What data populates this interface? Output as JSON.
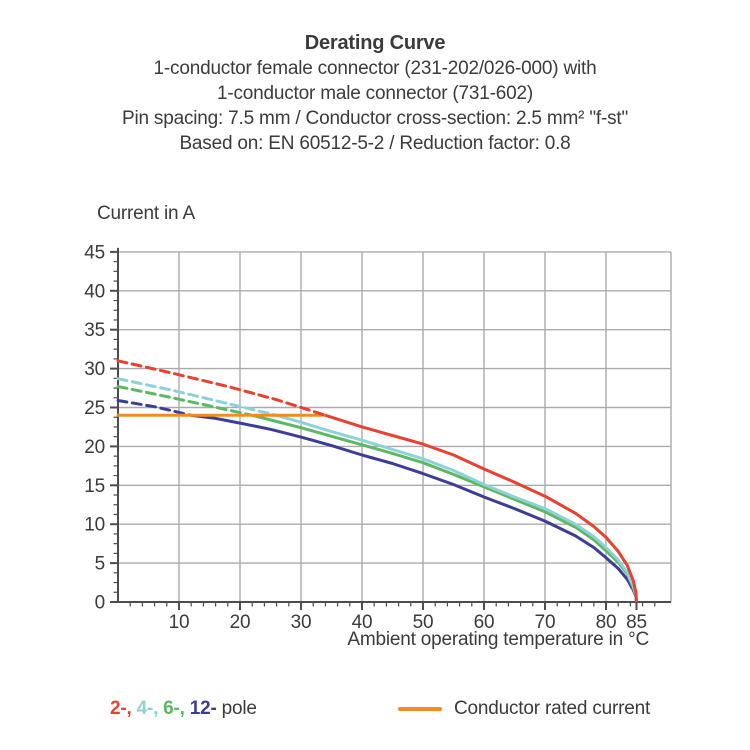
{
  "title": {
    "heading": "Derating Curve",
    "subtitle_lines": [
      "1-conductor female connector (231-202/026-000) with",
      "1-conductor male connector (731-602)",
      "Pin spacing: 7.5 mm / Conductor cross-section: 2.5 mm² \"f-st\"",
      "Based on: EN 60512-5-2 / Reduction factor: 0.8"
    ]
  },
  "chart_data": {
    "type": "line",
    "title": "Derating Curve",
    "xlabel": "Ambient operating temperature in °C",
    "ylabel": "Current in A",
    "xlim": [
      0,
      90.7
    ],
    "ylim": [
      0,
      45
    ],
    "x_major_ticks": [
      10,
      20,
      30,
      40,
      50,
      60,
      70,
      80,
      85
    ],
    "x_gridline_ticks": [
      10,
      20,
      30,
      40,
      50,
      60,
      70,
      80
    ],
    "x_minor_tick_step": 2,
    "y_major_ticks": [
      0,
      5,
      10,
      15,
      20,
      25,
      30,
      35,
      40,
      45
    ],
    "y_minor_tick_step": 1.25,
    "grid": true,
    "legend_position": "bottom",
    "axis_color": "#4d4d4d",
    "grid_color": "#ababab",
    "text_color": "#3b3b3b",
    "rated_current": {
      "label": "Conductor rated current",
      "value": 24,
      "x_start": 0,
      "x_end": 34,
      "color": "#ef8d22"
    },
    "series": [
      {
        "name": "12-pole",
        "color": "#3e3d96",
        "dashed_points": [
          [
            0,
            25.9
          ],
          [
            6,
            25.1
          ],
          [
            12,
            24
          ]
        ],
        "solid_points": [
          [
            12,
            24
          ],
          [
            16,
            23.6
          ],
          [
            20,
            23.0
          ],
          [
            25,
            22.2
          ],
          [
            30,
            21.2
          ],
          [
            35,
            20.1
          ],
          [
            40,
            18.9
          ],
          [
            45,
            17.8
          ],
          [
            50,
            16.5
          ],
          [
            55,
            15.1
          ],
          [
            60,
            13.5
          ],
          [
            65,
            12.0
          ],
          [
            70,
            10.4
          ],
          [
            75,
            8.5
          ],
          [
            78,
            7.0
          ],
          [
            80,
            5.7
          ],
          [
            82,
            4.3
          ],
          [
            83.5,
            2.9
          ],
          [
            84.5,
            1.5
          ],
          [
            84.9,
            0.7
          ],
          [
            85,
            0
          ]
        ]
      },
      {
        "name": "6-pole",
        "color": "#5cb961",
        "dashed_points": [
          [
            0,
            27.7
          ],
          [
            8,
            26.4
          ],
          [
            15,
            25.2
          ],
          [
            22,
            24
          ]
        ],
        "solid_points": [
          [
            22,
            24
          ],
          [
            26,
            23.2
          ],
          [
            30,
            22.4
          ],
          [
            35,
            21.3
          ],
          [
            40,
            20.2
          ],
          [
            45,
            19.1
          ],
          [
            50,
            17.9
          ],
          [
            55,
            16.4
          ],
          [
            60,
            14.8
          ],
          [
            65,
            13.2
          ],
          [
            70,
            11.6
          ],
          [
            75,
            9.6
          ],
          [
            78,
            8.0
          ],
          [
            80,
            6.6
          ],
          [
            82,
            5.1
          ],
          [
            83.5,
            3.6
          ],
          [
            84.5,
            1.8
          ],
          [
            84.9,
            0.8
          ],
          [
            85,
            0
          ]
        ]
      },
      {
        "name": "4-pole",
        "color": "#8ed2d9",
        "dashed_points": [
          [
            0,
            28.7
          ],
          [
            9,
            27.2
          ],
          [
            18,
            25.5
          ],
          [
            26,
            24
          ]
        ],
        "solid_points": [
          [
            26,
            24
          ],
          [
            30,
            23.1
          ],
          [
            35,
            21.9
          ],
          [
            40,
            20.8
          ],
          [
            45,
            19.6
          ],
          [
            50,
            18.4
          ],
          [
            55,
            16.9
          ],
          [
            60,
            15.1
          ],
          [
            65,
            13.5
          ],
          [
            70,
            12.0
          ],
          [
            75,
            10.0
          ],
          [
            78,
            8.4
          ],
          [
            80,
            7.0
          ],
          [
            82,
            5.4
          ],
          [
            83.5,
            3.8
          ],
          [
            84.5,
            2.0
          ],
          [
            84.9,
            0.9
          ],
          [
            85,
            0
          ]
        ]
      },
      {
        "name": "2-pole",
        "color": "#e8412f",
        "dashed_points": [
          [
            0,
            31
          ],
          [
            9,
            29.4
          ],
          [
            18,
            27.7
          ],
          [
            26,
            26.0
          ],
          [
            34,
            24
          ]
        ],
        "solid_points": [
          [
            34,
            24
          ],
          [
            40,
            22.5
          ],
          [
            45,
            21.4
          ],
          [
            50,
            20.3
          ],
          [
            55,
            18.9
          ],
          [
            60,
            17.1
          ],
          [
            65,
            15.4
          ],
          [
            70,
            13.6
          ],
          [
            75,
            11.4
          ],
          [
            78,
            9.7
          ],
          [
            80,
            8.3
          ],
          [
            82,
            6.5
          ],
          [
            83.5,
            4.7
          ],
          [
            84.5,
            2.7
          ],
          [
            84.9,
            1.2
          ],
          [
            85,
            0
          ]
        ]
      }
    ]
  },
  "legend": {
    "poles": [
      {
        "label": "2-,",
        "color": "#e8412f"
      },
      {
        "label": "4-,",
        "color": "#8ed2d9"
      },
      {
        "label": "6-,",
        "color": "#5cb961"
      },
      {
        "label": "12-",
        "color": "#3e3d96"
      }
    ],
    "poles_suffix": "pole",
    "rated": {
      "label": "Conductor rated current",
      "color": "#ef8d22"
    }
  }
}
